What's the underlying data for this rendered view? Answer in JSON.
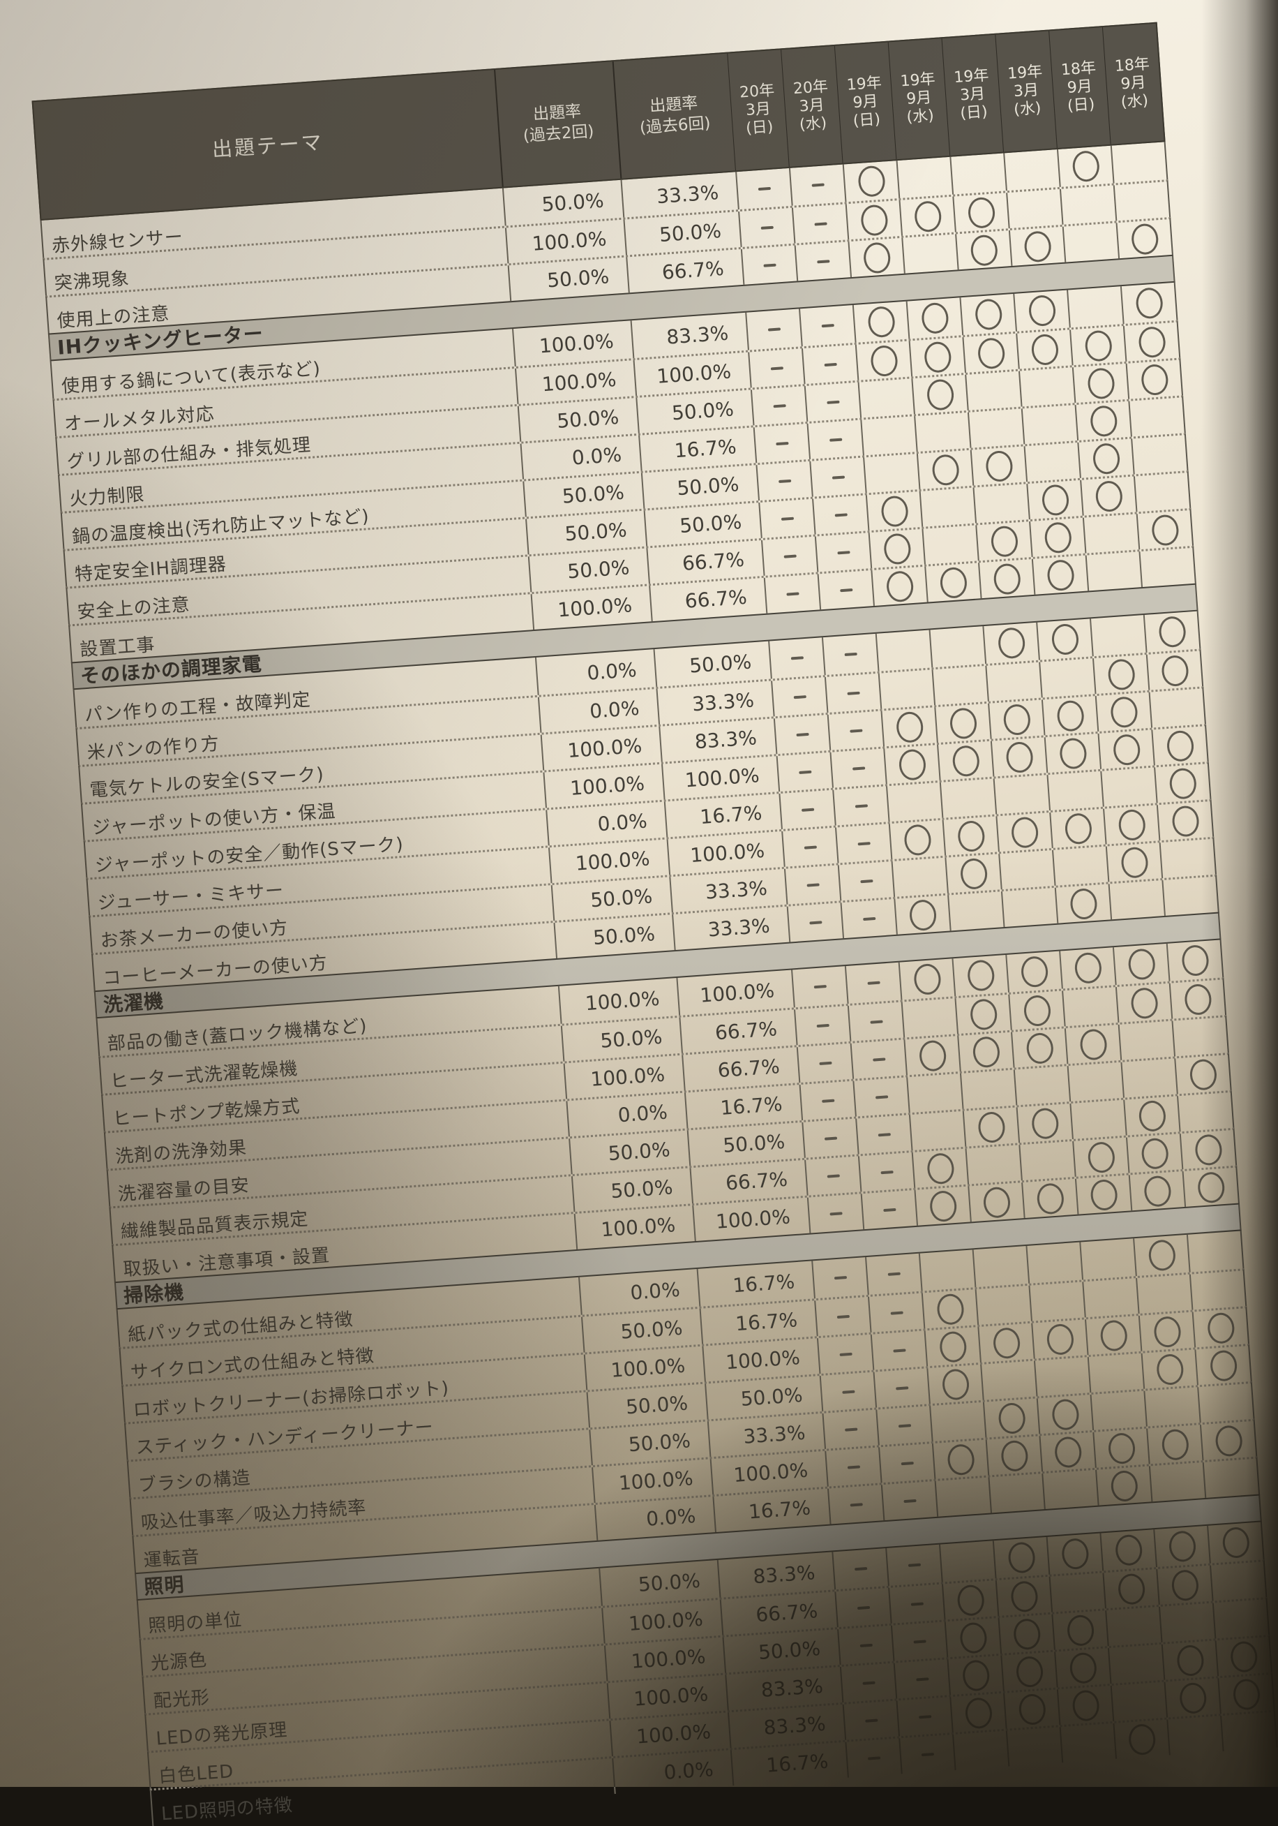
{
  "colors": {
    "header_bg": "#57534a",
    "section_band_bg": "#c8c4b7",
    "paper": "#f3edde",
    "ink": "#44413a",
    "grid_line": "#5c584e"
  },
  "header": {
    "theme": "出題テーマ",
    "rate_past2": "出題率\n(過去2回)",
    "rate_past6": "出題率\n(過去6回)",
    "exam_dates": [
      "20年\n3月\n(日)",
      "20年\n3月\n(水)",
      "19年\n9月\n(日)",
      "19年\n9月\n(水)",
      "19年\n3月\n(日)",
      "19年\n3月\n(水)",
      "18年\n9月\n(日)",
      "18年\n9月\n(水)"
    ]
  },
  "marks_legend": {
    "circle": "o",
    "dash": "-",
    "empty": ""
  },
  "sections": [
    {
      "title": "",
      "rows": [
        {
          "label": "赤外線センサー",
          "r2": "50.0%",
          "r6": "33.3%",
          "marks": [
            "-",
            "-",
            "o",
            "",
            "",
            "",
            "o",
            ""
          ]
        },
        {
          "label": "突沸現象",
          "r2": "100.0%",
          "r6": "50.0%",
          "marks": [
            "-",
            "-",
            "o",
            "o",
            "o",
            "",
            "",
            ""
          ]
        },
        {
          "label": "使用上の注意",
          "r2": "50.0%",
          "r6": "66.7%",
          "marks": [
            "-",
            "-",
            "o",
            "",
            "o",
            "o",
            "",
            "o"
          ]
        }
      ]
    },
    {
      "title": "IHクッキングヒーター",
      "rows": [
        {
          "label": "使用する鍋について(表示など)",
          "r2": "100.0%",
          "r6": "83.3%",
          "marks": [
            "-",
            "-",
            "o",
            "o",
            "o",
            "o",
            "",
            "o"
          ]
        },
        {
          "label": "オールメタル対応",
          "r2": "100.0%",
          "r6": "100.0%",
          "marks": [
            "-",
            "-",
            "o",
            "o",
            "o",
            "o",
            "o",
            "o"
          ]
        },
        {
          "label": "グリル部の仕組み・排気処理",
          "r2": "50.0%",
          "r6": "50.0%",
          "marks": [
            "-",
            "-",
            "",
            "o",
            "",
            "",
            "o",
            "o"
          ]
        },
        {
          "label": "火力制限",
          "r2": "0.0%",
          "r6": "16.7%",
          "marks": [
            "-",
            "-",
            "",
            "",
            "",
            "",
            "o",
            ""
          ]
        },
        {
          "label": "鍋の温度検出(汚れ防止マットなど)",
          "r2": "50.0%",
          "r6": "50.0%",
          "marks": [
            "-",
            "-",
            "",
            "o",
            "o",
            "",
            "o",
            ""
          ]
        },
        {
          "label": "特定安全IH調理器",
          "r2": "50.0%",
          "r6": "50.0%",
          "marks": [
            "-",
            "-",
            "o",
            "",
            "",
            "o",
            "o",
            ""
          ]
        },
        {
          "label": "安全上の注意",
          "r2": "50.0%",
          "r6": "66.7%",
          "marks": [
            "-",
            "-",
            "o",
            "",
            "o",
            "o",
            "",
            "o"
          ]
        },
        {
          "label": "設置工事",
          "r2": "100.0%",
          "r6": "66.7%",
          "marks": [
            "-",
            "-",
            "o",
            "o",
            "o",
            "o",
            "",
            ""
          ]
        }
      ]
    },
    {
      "title": "そのほかの調理家電",
      "rows": [
        {
          "label": "パン作りの工程・故障判定",
          "r2": "0.0%",
          "r6": "50.0%",
          "marks": [
            "-",
            "-",
            "",
            "",
            "o",
            "o",
            "",
            "o"
          ]
        },
        {
          "label": "米パンの作り方",
          "r2": "0.0%",
          "r6": "33.3%",
          "marks": [
            "-",
            "-",
            "",
            "",
            "",
            "",
            "o",
            "o"
          ]
        },
        {
          "label": "電気ケトルの安全(Sマーク)",
          "r2": "100.0%",
          "r6": "83.3%",
          "marks": [
            "-",
            "-",
            "o",
            "o",
            "o",
            "o",
            "o",
            ""
          ]
        },
        {
          "label": "ジャーポットの使い方・保温",
          "r2": "100.0%",
          "r6": "100.0%",
          "marks": [
            "-",
            "-",
            "o",
            "o",
            "o",
            "o",
            "o",
            "o"
          ]
        },
        {
          "label": "ジャーポットの安全／動作(Sマーク)",
          "r2": "0.0%",
          "r6": "16.7%",
          "marks": [
            "-",
            "-",
            "",
            "",
            "",
            "",
            "",
            "o"
          ]
        },
        {
          "label": "ジューサー・ミキサー",
          "r2": "100.0%",
          "r6": "100.0%",
          "marks": [
            "-",
            "-",
            "o",
            "o",
            "o",
            "o",
            "o",
            "o"
          ]
        },
        {
          "label": "お茶メーカーの使い方",
          "r2": "50.0%",
          "r6": "33.3%",
          "marks": [
            "-",
            "-",
            "",
            "o",
            "",
            "",
            "o",
            ""
          ]
        },
        {
          "label": "コーヒーメーカーの使い方",
          "r2": "50.0%",
          "r6": "33.3%",
          "marks": [
            "-",
            "-",
            "o",
            "",
            "",
            "o",
            "",
            ""
          ]
        }
      ]
    },
    {
      "title": "洗濯機",
      "rows": [
        {
          "label": "部品の働き(蓋ロック機構など)",
          "r2": "100.0%",
          "r6": "100.0%",
          "marks": [
            "-",
            "-",
            "o",
            "o",
            "o",
            "o",
            "o",
            "o"
          ]
        },
        {
          "label": "ヒーター式洗濯乾燥機",
          "r2": "50.0%",
          "r6": "66.7%",
          "marks": [
            "-",
            "-",
            "",
            "o",
            "o",
            "",
            "o",
            "o"
          ]
        },
        {
          "label": "ヒートポンプ乾燥方式",
          "r2": "100.0%",
          "r6": "66.7%",
          "marks": [
            "-",
            "-",
            "o",
            "o",
            "o",
            "o",
            "",
            ""
          ]
        },
        {
          "label": "洗剤の洗浄効果",
          "r2": "0.0%",
          "r6": "16.7%",
          "marks": [
            "-",
            "-",
            "",
            "",
            "",
            "",
            "",
            "o"
          ]
        },
        {
          "label": "洗濯容量の目安",
          "r2": "50.0%",
          "r6": "50.0%",
          "marks": [
            "-",
            "-",
            "",
            "o",
            "o",
            "",
            "o",
            ""
          ]
        },
        {
          "label": "繊維製品品質表示規定",
          "r2": "50.0%",
          "r6": "66.7%",
          "marks": [
            "-",
            "-",
            "o",
            "",
            "",
            "o",
            "o",
            "o"
          ]
        },
        {
          "label": "取扱い・注意事項・設置",
          "r2": "100.0%",
          "r6": "100.0%",
          "marks": [
            "-",
            "-",
            "o",
            "o",
            "o",
            "o",
            "o",
            "o"
          ]
        }
      ]
    },
    {
      "title": "掃除機",
      "rows": [
        {
          "label": "紙パック式の仕組みと特徴",
          "r2": "0.0%",
          "r6": "16.7%",
          "marks": [
            "-",
            "-",
            "",
            "",
            "",
            "",
            "o",
            ""
          ]
        },
        {
          "label": "サイクロン式の仕組みと特徴",
          "r2": "50.0%",
          "r6": "16.7%",
          "marks": [
            "-",
            "-",
            "o",
            "",
            "",
            "",
            "",
            ""
          ]
        },
        {
          "label": "ロボットクリーナー(お掃除ロボット)",
          "r2": "100.0%",
          "r6": "100.0%",
          "marks": [
            "-",
            "-",
            "o",
            "o",
            "o",
            "o",
            "o",
            "o"
          ]
        },
        {
          "label": "スティック・ハンディークリーナー",
          "r2": "50.0%",
          "r6": "50.0%",
          "marks": [
            "-",
            "-",
            "o",
            "",
            "",
            "",
            "o",
            "o"
          ]
        },
        {
          "label": "ブラシの構造",
          "r2": "50.0%",
          "r6": "33.3%",
          "marks": [
            "-",
            "-",
            "",
            "o",
            "o",
            "",
            "",
            ""
          ]
        },
        {
          "label": "吸込仕事率／吸込力持続率",
          "r2": "100.0%",
          "r6": "100.0%",
          "marks": [
            "-",
            "-",
            "o",
            "o",
            "o",
            "o",
            "o",
            "o"
          ]
        },
        {
          "label": "運転音",
          "r2": "0.0%",
          "r6": "16.7%",
          "marks": [
            "-",
            "-",
            "",
            "",
            "",
            "o",
            "",
            ""
          ]
        }
      ]
    },
    {
      "title": "照明",
      "rows": [
        {
          "label": "照明の単位",
          "r2": "50.0%",
          "r6": "83.3%",
          "marks": [
            "-",
            "-",
            "",
            "o",
            "o",
            "o",
            "o",
            "o"
          ]
        },
        {
          "label": "光源色",
          "r2": "100.0%",
          "r6": "66.7%",
          "marks": [
            "-",
            "-",
            "o",
            "o",
            "",
            "o",
            "o",
            ""
          ]
        },
        {
          "label": "配光形",
          "r2": "100.0%",
          "r6": "50.0%",
          "marks": [
            "-",
            "-",
            "o",
            "o",
            "o",
            "",
            "",
            ""
          ]
        },
        {
          "label": "LEDの発光原理",
          "r2": "100.0%",
          "r6": "83.3%",
          "marks": [
            "-",
            "-",
            "o",
            "o",
            "o",
            "",
            "o",
            "o"
          ]
        },
        {
          "label": "白色LED",
          "r2": "100.0%",
          "r6": "83.3%",
          "marks": [
            "-",
            "-",
            "o",
            "o",
            "o",
            "",
            "o",
            "o"
          ]
        },
        {
          "label": "LED照明の特徴",
          "r2": "0.0%",
          "r6": "16.7%",
          "marks": [
            "-",
            "-",
            "",
            "",
            "",
            "o",
            "",
            ""
          ]
        }
      ]
    }
  ]
}
